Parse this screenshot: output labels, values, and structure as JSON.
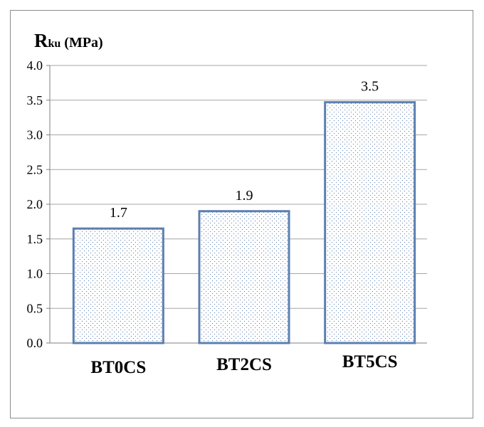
{
  "chart_data": {
    "type": "bar",
    "categories": [
      "BT0CS",
      "BT2CS",
      "BT5CS"
    ],
    "values": [
      1.65,
      1.9,
      3.47
    ],
    "data_labels": [
      "1.7",
      "1.9",
      "3.5"
    ],
    "ylabel": {
      "main": "R",
      "subscript": "ku",
      "unit": " (MPa)"
    },
    "ylim": [
      0,
      4.0
    ],
    "yticks": [
      "0.0",
      "0.5",
      "1.0",
      "1.5",
      "2.0",
      "2.5",
      "3.0",
      "3.5",
      "4.0"
    ],
    "grid": true,
    "legend": "none",
    "colors": {
      "bar_stroke": "#5b7fb1",
      "bar_fill": "#ffffff",
      "bar_dots": "#5b7fb1",
      "grid": "#a6a6a6",
      "axis": "#7f7f7f"
    }
  }
}
